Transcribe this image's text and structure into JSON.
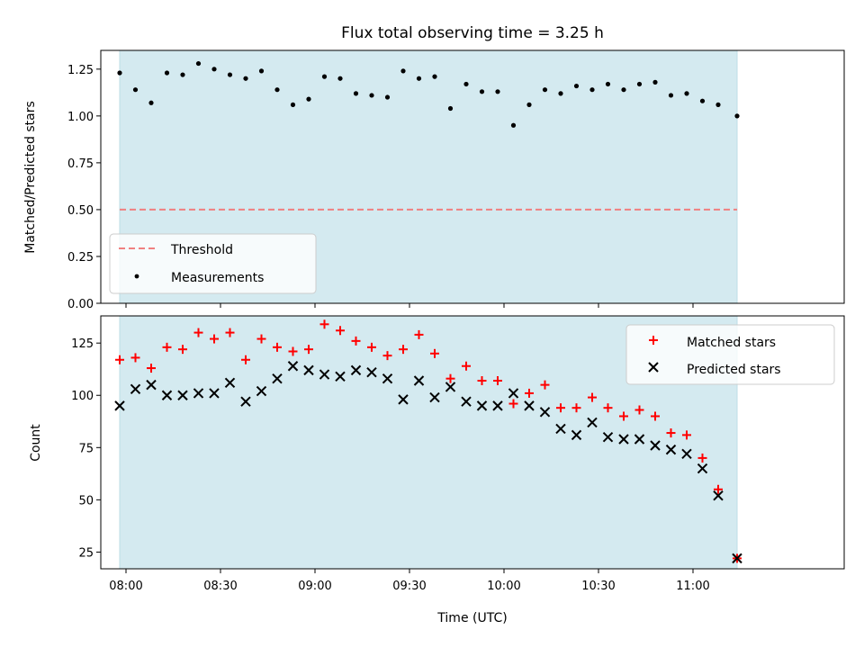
{
  "chart_data": [
    {
      "type": "scatter",
      "title": "Flux total observing time = 3.25 h",
      "xlabel": "",
      "ylabel": "Matched/Predicted stars",
      "ylim": [
        0.0,
        1.35
      ],
      "yticks": [
        "0.00",
        "0.25",
        "0.50",
        "0.75",
        "1.00",
        "1.25"
      ],
      "ytick_values": [
        0.0,
        0.25,
        0.5,
        0.75,
        1.0,
        1.25
      ],
      "x_range": [
        "07:52",
        "11:48"
      ],
      "observing_window": [
        "07:58",
        "11:14"
      ],
      "threshold": {
        "name": "Threshold",
        "value": 0.5,
        "color": "#f08080"
      },
      "series": [
        {
          "name": "Measurements",
          "color": "#000000",
          "marker": "dot",
          "x": [
            "07:58",
            "08:03",
            "08:08",
            "08:13",
            "08:18",
            "08:23",
            "08:28",
            "08:33",
            "08:38",
            "08:43",
            "08:48",
            "08:53",
            "08:58",
            "09:03",
            "09:08",
            "09:13",
            "09:18",
            "09:23",
            "09:28",
            "09:33",
            "09:38",
            "09:43",
            "09:48",
            "09:53",
            "09:58",
            "10:03",
            "10:08",
            "10:13",
            "10:18",
            "10:23",
            "10:28",
            "10:33",
            "10:38",
            "10:43",
            "10:48",
            "10:53",
            "10:58",
            "11:03",
            "11:08",
            "11:14"
          ],
          "values": [
            1.23,
            1.14,
            1.07,
            1.23,
            1.22,
            1.28,
            1.25,
            1.22,
            1.2,
            1.24,
            1.14,
            1.06,
            1.09,
            1.21,
            1.2,
            1.12,
            1.11,
            1.1,
            1.24,
            1.2,
            1.21,
            1.04,
            1.17,
            1.13,
            1.13,
            0.95,
            1.06,
            1.14,
            1.12,
            1.16,
            1.14,
            1.17,
            1.14,
            1.17,
            1.18,
            1.11,
            1.12,
            1.08,
            1.06,
            1.0
          ]
        }
      ],
      "legend": {
        "placement": "lower-left",
        "entries": [
          "Threshold",
          "Measurements"
        ]
      }
    },
    {
      "type": "scatter",
      "title": "",
      "xlabel": "Time (UTC)",
      "ylabel": "Count",
      "ylim": [
        17,
        138
      ],
      "yticks": [
        "25",
        "50",
        "75",
        "100",
        "125"
      ],
      "ytick_values": [
        25,
        50,
        75,
        100,
        125
      ],
      "xticks": [
        "08:00",
        "08:30",
        "09:00",
        "09:30",
        "10:00",
        "10:30",
        "11:00"
      ],
      "x_range": [
        "07:52",
        "11:48"
      ],
      "observing_window": [
        "07:58",
        "11:14"
      ],
      "x": [
        "07:58",
        "08:03",
        "08:08",
        "08:13",
        "08:18",
        "08:23",
        "08:28",
        "08:33",
        "08:38",
        "08:43",
        "08:48",
        "08:53",
        "08:58",
        "09:03",
        "09:08",
        "09:13",
        "09:18",
        "09:23",
        "09:28",
        "09:33",
        "09:38",
        "09:43",
        "09:48",
        "09:53",
        "09:58",
        "10:03",
        "10:08",
        "10:13",
        "10:18",
        "10:23",
        "10:28",
        "10:33",
        "10:38",
        "10:43",
        "10:48",
        "10:53",
        "10:58",
        "11:03",
        "11:08",
        "11:14"
      ],
      "series": [
        {
          "name": "Matched stars",
          "color": "#ff0000",
          "marker": "plus",
          "values": [
            117,
            118,
            113,
            123,
            122,
            130,
            127,
            130,
            117,
            127,
            123,
            121,
            122,
            134,
            131,
            126,
            123,
            119,
            122,
            129,
            120,
            108,
            114,
            107,
            107,
            96,
            101,
            105,
            94,
            94,
            99,
            94,
            90,
            93,
            90,
            82,
            81,
            70,
            55,
            22
          ]
        },
        {
          "name": "Predicted stars",
          "color": "#000000",
          "marker": "x",
          "values": [
            95,
            103,
            105,
            100,
            100,
            101,
            101,
            106,
            97,
            102,
            108,
            114,
            112,
            110,
            109,
            112,
            111,
            108,
            98,
            107,
            99,
            104,
            97,
            95,
            95,
            101,
            95,
            92,
            84,
            81,
            87,
            80,
            79,
            79,
            76,
            74,
            72,
            65,
            52,
            22
          ]
        }
      ],
      "legend": {
        "placement": "top-right",
        "entries": [
          "Matched stars",
          "Predicted stars"
        ]
      }
    }
  ],
  "colors": {
    "window_fill": "#d4eaf0",
    "window_edge": "#bcdde6"
  }
}
